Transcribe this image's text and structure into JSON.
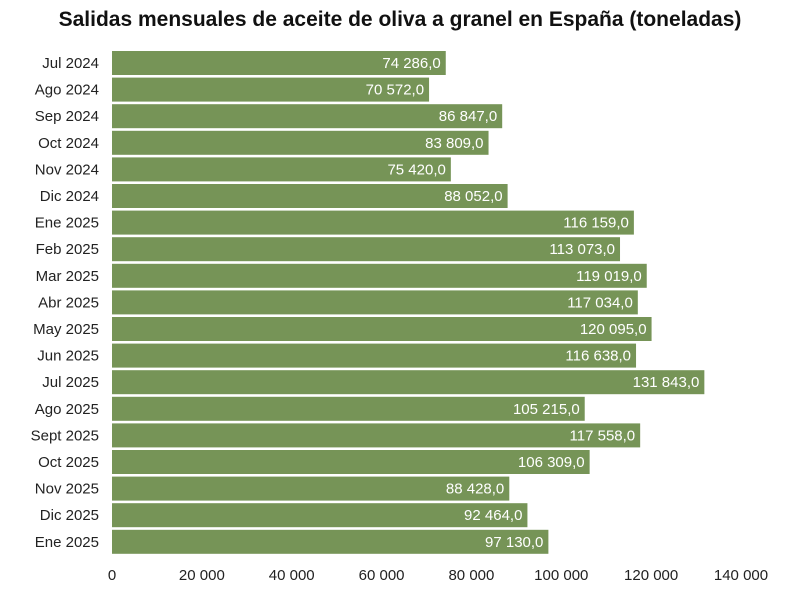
{
  "chart_data": {
    "type": "bar",
    "orientation": "horizontal",
    "title": "Salidas mensuales de aceite de oliva a granel en España (toneladas)",
    "xlabel": "",
    "ylabel": "",
    "categories": [
      "Jul 2024",
      "Ago 2024",
      "Sep 2024",
      "Oct 2024",
      "Nov 2024",
      "Dic 2024",
      "Ene 2025",
      "Feb 2025",
      "Mar 2025",
      "Abr 2025",
      "May 2025",
      "Jun 2025",
      "Jul 2025",
      "Ago 2025",
      "Sept 2025",
      "Oct 2025",
      "Nov 2025",
      "Dic 2025",
      "Ene 2025"
    ],
    "values": [
      74286.0,
      70572.0,
      86847.0,
      83809.0,
      75420.0,
      88052.0,
      116159.0,
      113073.0,
      119019.0,
      117034.0,
      120095.0,
      116638.0,
      131843.0,
      105215.0,
      117558.0,
      106309.0,
      88428.0,
      92464.0,
      97130.0
    ],
    "value_labels": [
      "74 286,0",
      "70 572,0",
      "86 847,0",
      "83 809,0",
      "75 420,0",
      "88 052,0",
      "116 159,0",
      "113 073,0",
      "119 019,0",
      "117 034,0",
      "120 095,0",
      "116 638,0",
      "131 843,0",
      "105 215,0",
      "117 558,0",
      "106 309,0",
      "88 428,0",
      "92 464,0",
      "97 130,0"
    ],
    "xlim": [
      0,
      140000
    ],
    "xticks": [
      0,
      20000,
      40000,
      60000,
      80000,
      100000,
      120000,
      140000
    ],
    "xtick_labels": [
      "0",
      "20 000",
      "40 000",
      "60 000",
      "80 000",
      "100 000",
      "120 000",
      "140 000"
    ],
    "grid": false,
    "legend": "none",
    "bar_color": "#769457",
    "label_color": "#ffffff"
  }
}
